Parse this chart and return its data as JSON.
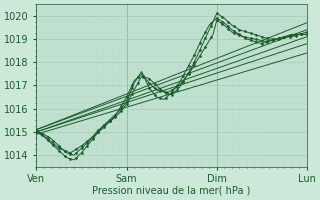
{
  "title": "",
  "xlabel": "Pression niveau de la mer( hPa )",
  "ylabel": "",
  "bg_color": "#cce8d8",
  "plot_bg_color": "#c0e0d0",
  "grid_major_color": "#a8c8b8",
  "grid_minor_color": "#b8d8c8",
  "line_color": "#1a5c2a",
  "ylim": [
    1013.5,
    1020.5
  ],
  "xlim": [
    0,
    72
  ],
  "yticks": [
    1014,
    1015,
    1016,
    1017,
    1018,
    1019,
    1020
  ],
  "xtick_positions": [
    0,
    24,
    48,
    72
  ],
  "xtick_labels": [
    "Ven",
    "Sam",
    "Dim",
    "Lun"
  ],
  "trend_lines": [
    [
      1014.9,
      1018.4
    ],
    [
      1015.0,
      1018.8
    ],
    [
      1015.0,
      1019.1
    ],
    [
      1015.1,
      1019.4
    ],
    [
      1015.1,
      1019.7
    ]
  ],
  "wavy_lines": [
    {
      "t": [
        0,
        2,
        4,
        6,
        8,
        10,
        12,
        14,
        16,
        18,
        20,
        22,
        24,
        26,
        28,
        30,
        32,
        34,
        36,
        38,
        40,
        42,
        44,
        46,
        48,
        50,
        52,
        54,
        56,
        58,
        60,
        62,
        64,
        66,
        68,
        70,
        72
      ],
      "v": [
        1015.0,
        1014.9,
        1014.7,
        1014.4,
        1014.1,
        1014.0,
        1014.3,
        1014.6,
        1015.0,
        1015.3,
        1015.5,
        1015.8,
        1016.2,
        1016.8,
        1017.4,
        1017.3,
        1017.0,
        1016.7,
        1016.6,
        1016.9,
        1017.4,
        1018.0,
        1018.7,
        1019.4,
        1020.1,
        1019.9,
        1019.6,
        1019.4,
        1019.3,
        1019.2,
        1019.1,
        1019.0,
        1019.0,
        1019.1,
        1019.2,
        1019.2,
        1019.3
      ]
    },
    {
      "t": [
        0,
        2,
        4,
        6,
        8,
        10,
        12,
        14,
        16,
        18,
        20,
        22,
        24,
        26,
        28,
        30,
        32,
        34,
        36,
        38,
        40,
        42,
        44,
        46,
        48,
        50,
        52,
        54,
        56,
        58,
        60,
        62,
        64,
        66,
        68,
        70,
        72
      ],
      "v": [
        1015.0,
        1014.8,
        1014.5,
        1014.2,
        1013.9,
        1013.8,
        1014.1,
        1014.5,
        1014.9,
        1015.3,
        1015.6,
        1015.9,
        1016.3,
        1017.1,
        1017.6,
        1016.9,
        1016.5,
        1016.4,
        1016.7,
        1017.1,
        1017.7,
        1018.3,
        1019.0,
        1019.6,
        1019.9,
        1019.7,
        1019.4,
        1019.2,
        1019.0,
        1018.9,
        1018.8,
        1018.9,
        1019.0,
        1019.1,
        1019.1,
        1019.2,
        1019.2
      ]
    },
    {
      "t": [
        0,
        3,
        6,
        9,
        12,
        15,
        18,
        21,
        24,
        26,
        28,
        30,
        32,
        35,
        38,
        41,
        44,
        47,
        48,
        50,
        52,
        55,
        58,
        61,
        64,
        67,
        70,
        72
      ],
      "v": [
        1015.1,
        1014.7,
        1014.3,
        1014.1,
        1014.4,
        1014.8,
        1015.2,
        1015.7,
        1016.5,
        1017.2,
        1017.5,
        1017.1,
        1016.8,
        1016.7,
        1017.0,
        1017.6,
        1018.4,
        1019.2,
        1019.8,
        1019.6,
        1019.3,
        1019.1,
        1019.0,
        1018.9,
        1019.0,
        1019.1,
        1019.2,
        1019.2
      ]
    }
  ]
}
